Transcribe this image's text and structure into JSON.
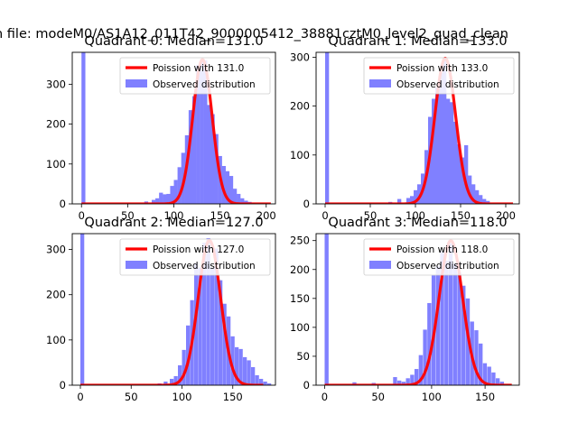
{
  "figure": {
    "suptitle": "n file: modeM0/AS1A12_011T42_9000005412_38881cztM0_level2_quad_clean"
  },
  "chart_data": [
    {
      "type": "bar",
      "title": "Quadrant 0: Median=131.0",
      "median": 131.0,
      "xlim": [
        -10,
        210
      ],
      "ylim": [
        0,
        380
      ],
      "xticks": [
        0,
        50,
        100,
        150,
        200
      ],
      "yticks": [
        0,
        100,
        200,
        300
      ],
      "legend": {
        "placement": "top-right",
        "entries": [
          "Poission with 131.0",
          "Observed distribution"
        ]
      },
      "series": [
        {
          "name": "Poission with 131.0",
          "kind": "line",
          "color": "#ff0000",
          "lambda": 131.0,
          "peak": 362,
          "sigma": 10.5,
          "x_range": [
            0,
            205
          ]
        },
        {
          "name": "Observed distribution",
          "kind": "histogram",
          "color": "#8080ff",
          "bars": [
            [
              0,
              380
            ],
            [
              68,
              6
            ],
            [
              76,
              10
            ],
            [
              80,
              14
            ],
            [
              84,
              28
            ],
            [
              88,
              24
            ],
            [
              92,
              25
            ],
            [
              96,
              45
            ],
            [
              100,
              60
            ],
            [
              104,
              92
            ],
            [
              108,
              128
            ],
            [
              112,
              172
            ],
            [
              116,
              235
            ],
            [
              120,
              270
            ],
            [
              124,
              348
            ],
            [
              128,
              360
            ],
            [
              132,
              360
            ],
            [
              136,
              248
            ],
            [
              140,
              225
            ],
            [
              144,
              175
            ],
            [
              148,
              120
            ],
            [
              152,
              95
            ],
            [
              156,
              82
            ],
            [
              160,
              70
            ],
            [
              164,
              38
            ],
            [
              168,
              25
            ],
            [
              172,
              14
            ],
            [
              176,
              8
            ],
            [
              180,
              5
            ],
            [
              184,
              3
            ]
          ],
          "bin_width": 4.2
        }
      ]
    },
    {
      "type": "bar",
      "title": "Quadrant 1: Median=133.0",
      "median": 133.0,
      "xlim": [
        -10,
        215
      ],
      "ylim": [
        0,
        310
      ],
      "xticks": [
        0,
        50,
        100,
        150,
        200
      ],
      "yticks": [
        0,
        100,
        200,
        300
      ],
      "legend": {
        "placement": "top-right",
        "entries": [
          "Poission with 133.0",
          "Observed distribution"
        ]
      },
      "series": [
        {
          "name": "Poission with 133.0",
          "kind": "line",
          "color": "#ff0000",
          "lambda": 133.0,
          "peak": 298,
          "sigma": 11.5,
          "x_range": [
            0,
            208
          ]
        },
        {
          "name": "Observed distribution",
          "kind": "histogram",
          "color": "#8080ff",
          "bars": [
            [
              0,
              310
            ],
            [
              70,
              4
            ],
            [
              80,
              10
            ],
            [
              90,
              12
            ],
            [
              94,
              16
            ],
            [
              98,
              28
            ],
            [
              102,
              40
            ],
            [
              106,
              62
            ],
            [
              110,
              110
            ],
            [
              114,
              178
            ],
            [
              118,
              215
            ],
            [
              122,
              238
            ],
            [
              126,
              268
            ],
            [
              130,
              298
            ],
            [
              134,
              215
            ],
            [
              138,
              208
            ],
            [
              142,
              168
            ],
            [
              146,
              122
            ],
            [
              150,
              95
            ],
            [
              154,
              120
            ],
            [
              158,
              58
            ],
            [
              162,
              40
            ],
            [
              166,
              28
            ],
            [
              170,
              18
            ],
            [
              174,
              10
            ],
            [
              178,
              6
            ]
          ],
          "bin_width": 4.3
        }
      ]
    },
    {
      "type": "bar",
      "title": "Quadrant 2: Median=127.0",
      "median": 127.0,
      "xlim": [
        -8,
        192
      ],
      "ylim": [
        0,
        335
      ],
      "xticks": [
        0,
        50,
        100,
        150
      ],
      "yticks": [
        0,
        100,
        200,
        300
      ],
      "legend": {
        "placement": "top-right",
        "entries": [
          "Poission with 127.0",
          "Observed distribution"
        ]
      },
      "series": [
        {
          "name": "Poission with 127.0",
          "kind": "line",
          "color": "#ff0000",
          "lambda": 127.0,
          "peak": 320,
          "sigma": 11.0,
          "x_range": [
            0,
            180
          ]
        },
        {
          "name": "Observed distribution",
          "kind": "histogram",
          "color": "#8080ff",
          "bars": [
            [
              0,
              335
            ],
            [
              76,
              4
            ],
            [
              82,
              8
            ],
            [
              88,
              14
            ],
            [
              92,
              20
            ],
            [
              96,
              44
            ],
            [
              100,
              78
            ],
            [
              104,
              132
            ],
            [
              108,
              188
            ],
            [
              112,
              270
            ],
            [
              116,
              260
            ],
            [
              120,
              315
            ],
            [
              124,
              325
            ],
            [
              128,
              260
            ],
            [
              132,
              302
            ],
            [
              136,
              232
            ],
            [
              140,
              180
            ],
            [
              144,
              152
            ],
            [
              148,
              108
            ],
            [
              152,
              84
            ],
            [
              156,
              80
            ],
            [
              160,
              62
            ],
            [
              164,
              55
            ],
            [
              168,
              40
            ],
            [
              172,
              22
            ],
            [
              176,
              14
            ],
            [
              180,
              8
            ],
            [
              184,
              4
            ]
          ],
          "bin_width": 3.8
        }
      ]
    },
    {
      "type": "bar",
      "title": "Quadrant 3: Median=118.0",
      "median": 118.0,
      "xlim": [
        -8,
        182
      ],
      "ylim": [
        0,
        262
      ],
      "xticks": [
        0,
        50,
        100,
        150
      ],
      "yticks": [
        0,
        50,
        100,
        150,
        200,
        250
      ],
      "legend": {
        "placement": "top-right",
        "entries": [
          "Poission with 118.0",
          "Observed distribution"
        ]
      },
      "series": [
        {
          "name": "Poission with 118.0",
          "kind": "line",
          "color": "#ff0000",
          "lambda": 118.0,
          "peak": 250,
          "sigma": 11.0,
          "x_range": [
            0,
            175
          ]
        },
        {
          "name": "Observed distribution",
          "kind": "histogram",
          "color": "#8080ff",
          "bars": [
            [
              0,
              262
            ],
            [
              26,
              5
            ],
            [
              44,
              4
            ],
            [
              64,
              14
            ],
            [
              68,
              8
            ],
            [
              72,
              6
            ],
            [
              76,
              12
            ],
            [
              80,
              18
            ],
            [
              84,
              28
            ],
            [
              88,
              52
            ],
            [
              92,
              96
            ],
            [
              96,
              142
            ],
            [
              100,
              190
            ],
            [
              104,
              205
            ],
            [
              108,
              232
            ],
            [
              112,
              215
            ],
            [
              116,
              245
            ],
            [
              120,
              210
            ],
            [
              124,
              195
            ],
            [
              128,
              172
            ],
            [
              132,
              150
            ],
            [
              136,
              110
            ],
            [
              140,
              95
            ],
            [
              144,
              72
            ],
            [
              148,
              38
            ],
            [
              152,
              32
            ],
            [
              156,
              22
            ],
            [
              160,
              12
            ],
            [
              164,
              6
            ]
          ],
          "bin_width": 3.7
        }
      ]
    }
  ]
}
